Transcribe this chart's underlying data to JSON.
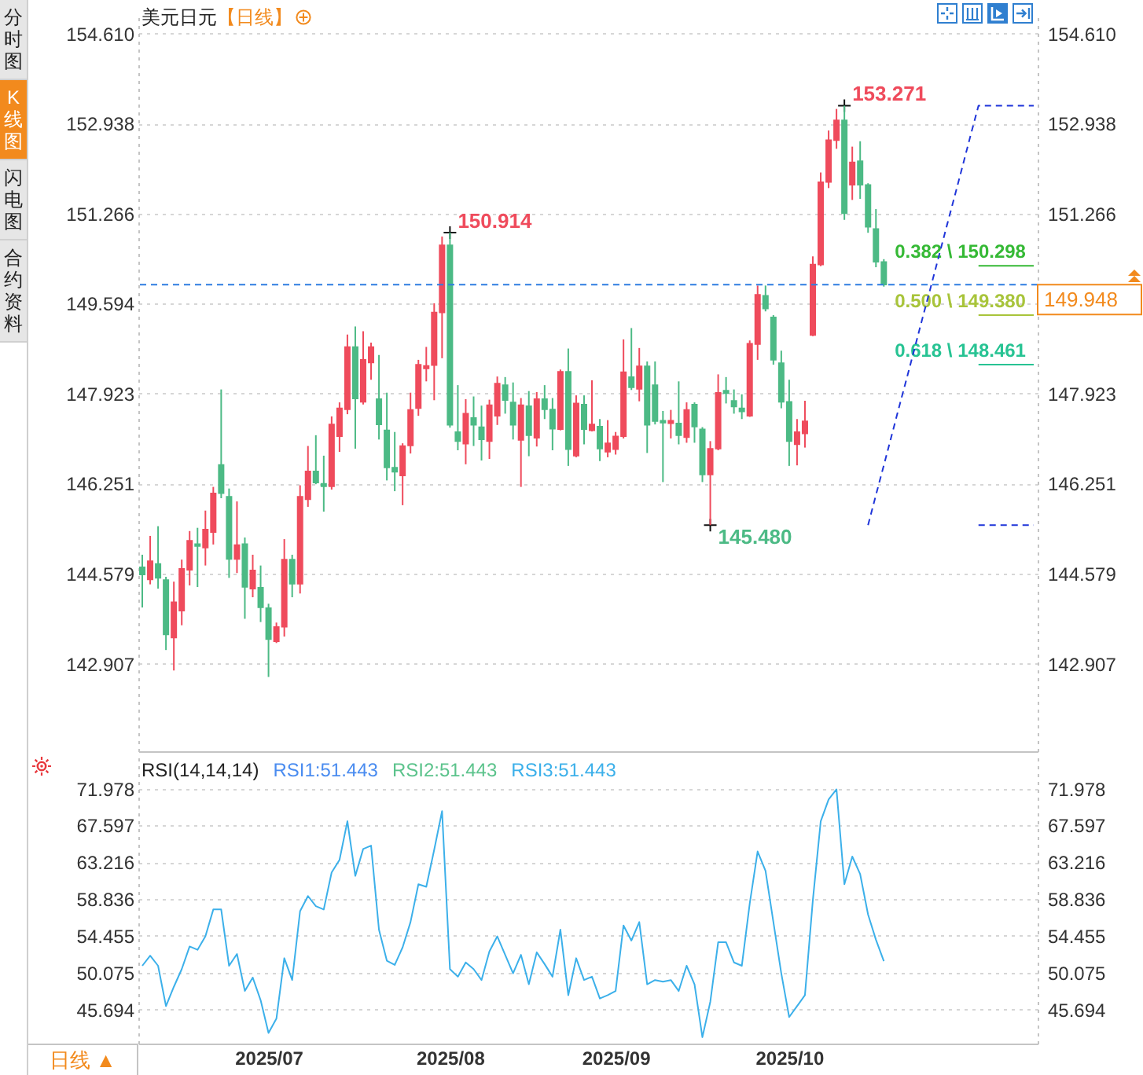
{
  "chart_data": [
    {
      "type": "candlestick",
      "title": "美元日元",
      "subtitle": "【日线】",
      "categories": [
        null,
        null,
        null,
        null,
        null,
        null,
        null,
        null,
        null,
        null,
        null,
        null,
        null,
        null,
        null,
        null,
        "2025/07",
        null,
        null,
        null,
        null,
        null,
        null,
        null,
        null,
        null,
        null,
        null,
        null,
        null,
        null,
        null,
        null,
        null,
        null,
        null,
        null,
        null,
        null,
        "2025/08",
        null,
        null,
        null,
        null,
        null,
        null,
        null,
        null,
        null,
        null,
        null,
        null,
        null,
        null,
        null,
        null,
        null,
        null,
        null,
        null,
        "2025/09",
        null,
        null,
        null,
        null,
        null,
        null,
        null,
        null,
        null,
        null,
        null,
        null,
        null,
        null,
        null,
        null,
        null,
        null,
        null,
        null,
        null,
        "2025/10",
        null,
        null,
        null,
        null,
        null,
        null,
        null,
        null,
        null,
        null,
        null,
        null,
        null,
        null,
        null,
        null,
        null,
        null,
        null,
        null,
        null,
        null,
        null,
        null,
        null,
        null,
        null,
        null,
        null,
        null,
        null
      ],
      "ohlc": [
        [
          144.7,
          144.93,
          143.95,
          144.56
        ],
        [
          144.47,
          145.28,
          144.38,
          144.81
        ],
        [
          144.76,
          145.46,
          144.3,
          144.5
        ],
        [
          144.46,
          144.52,
          143.16,
          143.45
        ],
        [
          143.39,
          144.43,
          142.78,
          144.05
        ],
        [
          143.89,
          144.84,
          143.62,
          144.67
        ],
        [
          144.65,
          145.37,
          144.36,
          145.19
        ],
        [
          145.13,
          145.43,
          144.33,
          145.09
        ],
        [
          145.06,
          145.75,
          144.73,
          145.4
        ],
        [
          145.35,
          146.19,
          145.12,
          146.07
        ],
        [
          146.6,
          148.0,
          145.98,
          146.07
        ],
        [
          146.01,
          146.16,
          144.5,
          144.85
        ],
        [
          144.85,
          145.92,
          144.59,
          145.11
        ],
        [
          145.13,
          145.25,
          143.74,
          144.33
        ],
        [
          144.3,
          144.93,
          144.14,
          144.64
        ],
        [
          144.32,
          144.73,
          143.68,
          143.95
        ],
        [
          143.94,
          144.02,
          142.66,
          143.36
        ],
        [
          143.32,
          143.67,
          143.29,
          143.59
        ],
        [
          143.59,
          145.22,
          143.41,
          144.84
        ],
        [
          144.84,
          144.93,
          144.14,
          144.39
        ],
        [
          144.39,
          146.22,
          144.21,
          146.01
        ],
        [
          145.96,
          146.95,
          145.82,
          146.48
        ],
        [
          146.48,
          147.15,
          146.24,
          146.27
        ],
        [
          146.25,
          146.77,
          145.73,
          146.2
        ],
        [
          146.2,
          147.5,
          146.14,
          147.35
        ],
        [
          147.13,
          147.76,
          146.84,
          147.65
        ],
        [
          147.63,
          149.02,
          147.54,
          148.79
        ],
        [
          148.79,
          149.17,
          146.9,
          147.83
        ],
        [
          147.77,
          149.08,
          147.72,
          148.55
        ],
        [
          148.5,
          148.87,
          148.18,
          148.79
        ],
        [
          147.82,
          148.64,
          147.07,
          147.35
        ],
        [
          147.24,
          147.94,
          146.31,
          146.55
        ],
        [
          146.55,
          147.21,
          146.11,
          146.47
        ],
        [
          146.4,
          147.0,
          145.85,
          146.95
        ],
        [
          146.96,
          147.94,
          146.81,
          147.62
        ],
        [
          147.65,
          148.55,
          147.51,
          148.46
        ],
        [
          148.39,
          148.79,
          148.15,
          148.44
        ],
        [
          148.45,
          149.6,
          147.8,
          149.43
        ],
        [
          149.43,
          150.84,
          148.58,
          150.68
        ],
        [
          150.68,
          150.914,
          147.29,
          147.34
        ],
        [
          147.21,
          148.08,
          146.87,
          147.04
        ],
        [
          146.99,
          147.82,
          146.61,
          147.55
        ],
        [
          147.47,
          147.87,
          146.95,
          147.34
        ],
        [
          147.3,
          147.7,
          146.68,
          147.07
        ],
        [
          147.04,
          147.81,
          146.71,
          147.71
        ],
        [
          147.51,
          148.24,
          147.34,
          148.11
        ],
        [
          148.08,
          148.23,
          147.55,
          147.8
        ],
        [
          147.76,
          148.13,
          147.07,
          147.34
        ],
        [
          147.06,
          147.84,
          146.19,
          147.71
        ],
        [
          147.69,
          147.97,
          146.76,
          147.15
        ],
        [
          147.1,
          147.95,
          146.94,
          147.82
        ],
        [
          147.82,
          148.08,
          147.45,
          147.63
        ],
        [
          147.63,
          147.84,
          146.87,
          147.27
        ],
        [
          147.26,
          148.37,
          147.24,
          148.33
        ],
        [
          148.33,
          148.76,
          146.58,
          146.89
        ],
        [
          146.77,
          147.89,
          146.74,
          147.74
        ],
        [
          147.72,
          147.89,
          146.98,
          147.26
        ],
        [
          147.24,
          148.17,
          147.22,
          147.35
        ],
        [
          147.31,
          147.45,
          146.67,
          146.9
        ],
        [
          146.84,
          147.43,
          146.74,
          147.0
        ],
        [
          146.89,
          147.21,
          146.79,
          147.13
        ],
        [
          147.13,
          148.93,
          147.09,
          148.32
        ],
        [
          148.23,
          149.14,
          147.99,
          148.04
        ],
        [
          148.01,
          148.77,
          147.78,
          148.43
        ],
        [
          148.43,
          148.52,
          146.82,
          147.34
        ],
        [
          148.08,
          148.52,
          147.35,
          147.41
        ],
        [
          147.42,
          147.6,
          146.28,
          147.38
        ],
        [
          147.37,
          147.62,
          147.09,
          147.42
        ],
        [
          147.37,
          148.15,
          146.98,
          147.15
        ],
        [
          147.11,
          147.76,
          147.01,
          147.62
        ],
        [
          147.72,
          147.76,
          147.01,
          147.31
        ],
        [
          147.26,
          147.3,
          146.28,
          146.42
        ],
        [
          146.42,
          147.04,
          145.48,
          146.9
        ],
        [
          146.9,
          148.28,
          146.87,
          147.94
        ],
        [
          147.98,
          148.23,
          147.74,
          147.93
        ],
        [
          147.79,
          148.0,
          147.55,
          147.68
        ],
        [
          147.65,
          147.91,
          147.45,
          147.59
        ],
        [
          147.51,
          148.91,
          147.49,
          148.85
        ],
        [
          148.84,
          149.93,
          148.55,
          149.76
        ],
        [
          149.74,
          149.93,
          149.45,
          149.5
        ],
        [
          149.34,
          149.38,
          148.46,
          148.55
        ],
        [
          148.49,
          148.72,
          147.65,
          147.77
        ],
        [
          147.77,
          148.18,
          146.58,
          147.04
        ],
        [
          146.98,
          147.45,
          146.59,
          147.21
        ],
        [
          147.18,
          147.79,
          146.92,
          147.41
        ],
        [
          149.01,
          150.47,
          148.99,
          150.32
        ],
        [
          150.32,
          152.03,
          150.29,
          151.85
        ],
        [
          151.85,
          152.81,
          151.74,
          152.63
        ],
        [
          152.63,
          153.21,
          152.47,
          153.0
        ],
        [
          153.0,
          153.271,
          151.15,
          151.27
        ],
        [
          151.8,
          152.51,
          151.52,
          152.22
        ],
        [
          152.24,
          152.61,
          151.54,
          151.8
        ],
        [
          151.8,
          151.83,
          150.91,
          151.02
        ],
        [
          150.98,
          151.35,
          150.27,
          150.37
        ],
        [
          150.37,
          150.42,
          149.91,
          149.948
        ],
        null,
        null,
        null,
        null,
        null,
        null,
        null,
        null,
        null,
        null,
        null,
        null,
        null,
        null,
        null,
        null,
        null,
        null,
        null
      ],
      "value_labels": [
        null,
        null,
        null,
        null,
        null,
        null,
        null,
        null,
        null,
        null,
        null,
        null,
        null,
        null,
        null,
        null,
        null,
        null,
        null,
        null,
        null,
        null,
        null,
        null,
        null,
        null,
        null,
        null,
        null,
        null,
        null,
        null,
        null,
        null,
        null,
        null,
        null,
        null,
        null,
        "150.914",
        null,
        null,
        null,
        null,
        null,
        null,
        null,
        null,
        null,
        null,
        null,
        null,
        null,
        null,
        null,
        null,
        null,
        null,
        null,
        null,
        null,
        null,
        null,
        null,
        null,
        null,
        null,
        null,
        null,
        null,
        null,
        null,
        "145.480",
        null,
        null,
        null,
        null,
        null,
        null,
        null,
        null,
        null,
        null,
        null,
        null,
        null,
        null,
        null,
        null,
        "153.271",
        null,
        null,
        null,
        null,
        null,
        null,
        null,
        null,
        null,
        null,
        null,
        null,
        null,
        null,
        null,
        null,
        null,
        null,
        null,
        null,
        null,
        null,
        null,
        null
      ],
      "colors": [
        "#4cba85",
        "#ef4b5c",
        "#4cba85",
        "#4cba85",
        "#ef4b5c",
        "#ef4b5c",
        "#ef4b5c",
        "#4cba85",
        "#ef4b5c",
        "#ef4b5c",
        "#4cba85",
        "#4cba85",
        "#ef4b5c",
        "#4cba85",
        "#ef4b5c",
        "#4cba85",
        "#4cba85",
        "#ef4b5c",
        "#ef4b5c",
        "#4cba85",
        "#ef4b5c",
        "#ef4b5c",
        "#4cba85",
        "#4cba85",
        "#ef4b5c",
        "#ef4b5c",
        "#ef4b5c",
        "#4cba85",
        "#ef4b5c",
        "#ef4b5c",
        "#4cba85",
        "#4cba85",
        "#4cba85",
        "#ef4b5c",
        "#ef4b5c",
        "#ef4b5c",
        "#ef4b5c",
        "#ef4b5c",
        "#ef4b5c",
        "#4cba85",
        "#4cba85",
        "#ef4b5c",
        "#4cba85",
        "#4cba85",
        "#ef4b5c",
        "#ef4b5c",
        "#4cba85",
        "#4cba85",
        "#ef4b5c",
        "#4cba85",
        "#ef4b5c",
        "#4cba85",
        "#4cba85",
        "#ef4b5c",
        "#4cba85",
        "#ef4b5c",
        "#4cba85",
        "#ef4b5c",
        "#4cba85",
        "#ef4b5c",
        "#ef4b5c",
        "#ef4b5c",
        "#4cba85",
        "#ef4b5c",
        "#4cba85",
        "#4cba85",
        "#4cba85",
        "#ef4b5c",
        "#4cba85",
        "#ef4b5c",
        "#4cba85",
        "#4cba85",
        "#ef4b5c",
        "#ef4b5c",
        "#4cba85",
        "#4cba85",
        "#4cba85",
        "#ef4b5c",
        "#ef4b5c",
        "#4cba85",
        "#4cba85",
        "#4cba85",
        "#4cba85",
        "#ef4b5c",
        "#ef4b5c",
        "#ef4b5c",
        "#ef4b5c",
        "#ef4b5c",
        "#ef4b5c",
        "#4cba85",
        "#ef4b5c",
        "#4cba85",
        "#4cba85",
        "#4cba85",
        "#4cba85",
        null,
        null,
        null,
        null,
        null,
        null,
        null,
        null,
        null,
        null,
        null,
        null,
        null,
        null,
        null,
        null,
        null,
        null,
        null
      ],
      "series": [
        {
          "type": "line",
          "name": "0.382 \\ 150.298",
          "color": "#35b935",
          "values": [
            null,
            null,
            null,
            null,
            null,
            null,
            null,
            null,
            null,
            null,
            null,
            null,
            null,
            null,
            null,
            null,
            null,
            null,
            null,
            null,
            null,
            null,
            null,
            null,
            null,
            null,
            null,
            null,
            null,
            null,
            null,
            null,
            null,
            null,
            null,
            null,
            null,
            null,
            null,
            null,
            null,
            null,
            null,
            null,
            null,
            null,
            null,
            null,
            null,
            null,
            null,
            null,
            null,
            null,
            null,
            null,
            null,
            null,
            null,
            null,
            null,
            null,
            null,
            null,
            null,
            null,
            null,
            null,
            null,
            null,
            null,
            null,
            null,
            null,
            null,
            null,
            null,
            null,
            null,
            null,
            null,
            null,
            null,
            null,
            null,
            null,
            null,
            null,
            null,
            null,
            null,
            null,
            null,
            null,
            null,
            null,
            null,
            null,
            null,
            null,
            null,
            null,
            null,
            null,
            null,
            null,
            150.298,
            150.298,
            150.298,
            150.298,
            150.298,
            150.298,
            150.298,
            150.298
          ]
        },
        {
          "type": "line",
          "name": "0.500 \\ 149.380",
          "color": "#a8c43a",
          "values": [
            null,
            null,
            null,
            null,
            null,
            null,
            null,
            null,
            null,
            null,
            null,
            null,
            null,
            null,
            null,
            null,
            null,
            null,
            null,
            null,
            null,
            null,
            null,
            null,
            null,
            null,
            null,
            null,
            null,
            null,
            null,
            null,
            null,
            null,
            null,
            null,
            null,
            null,
            null,
            null,
            null,
            null,
            null,
            null,
            null,
            null,
            null,
            null,
            null,
            null,
            null,
            null,
            null,
            null,
            null,
            null,
            null,
            null,
            null,
            null,
            null,
            null,
            null,
            null,
            null,
            null,
            null,
            null,
            null,
            null,
            null,
            null,
            null,
            null,
            null,
            null,
            null,
            null,
            null,
            null,
            null,
            null,
            null,
            null,
            null,
            null,
            null,
            null,
            null,
            null,
            null,
            null,
            null,
            null,
            null,
            null,
            null,
            null,
            null,
            null,
            null,
            null,
            null,
            null,
            null,
            null,
            149.38,
            149.38,
            149.38,
            149.38,
            149.38,
            149.38,
            149.38,
            149.38
          ]
        },
        {
          "type": "line",
          "name": "0.618 \\ 148.461",
          "color": "#27c393",
          "values": [
            null,
            null,
            null,
            null,
            null,
            null,
            null,
            null,
            null,
            null,
            null,
            null,
            null,
            null,
            null,
            null,
            null,
            null,
            null,
            null,
            null,
            null,
            null,
            null,
            null,
            null,
            null,
            null,
            null,
            null,
            null,
            null,
            null,
            null,
            null,
            null,
            null,
            null,
            null,
            null,
            null,
            null,
            null,
            null,
            null,
            null,
            null,
            null,
            null,
            null,
            null,
            null,
            null,
            null,
            null,
            null,
            null,
            null,
            null,
            null,
            null,
            null,
            null,
            null,
            null,
            null,
            null,
            null,
            null,
            null,
            null,
            null,
            null,
            null,
            null,
            null,
            null,
            null,
            null,
            null,
            null,
            null,
            null,
            null,
            null,
            null,
            null,
            null,
            null,
            null,
            null,
            null,
            null,
            null,
            null,
            null,
            null,
            null,
            null,
            null,
            null,
            null,
            null,
            null,
            null,
            null,
            148.461,
            148.461,
            148.461,
            148.461,
            148.461,
            148.461,
            148.461,
            148.461
          ]
        },
        {
          "type": "line",
          "color": "#1f35d9",
          "line_style": "dashed",
          "values": [
            null,
            null,
            null,
            null,
            null,
            null,
            null,
            null,
            null,
            null,
            null,
            null,
            null,
            null,
            null,
            null,
            null,
            null,
            null,
            null,
            null,
            null,
            null,
            null,
            null,
            null,
            null,
            null,
            null,
            null,
            null,
            null,
            null,
            null,
            null,
            null,
            null,
            null,
            null,
            null,
            null,
            null,
            null,
            null,
            null,
            null,
            null,
            null,
            null,
            null,
            null,
            null,
            null,
            null,
            null,
            null,
            null,
            null,
            null,
            null,
            null,
            null,
            null,
            null,
            null,
            null,
            null,
            null,
            null,
            null,
            null,
            null,
            null,
            null,
            null,
            null,
            null,
            null,
            null,
            null,
            null,
            null,
            null,
            null,
            null,
            null,
            null,
            null,
            null,
            null,
            null,
            null,
            145.48,
            146.04,
            146.59,
            147.15,
            147.71,
            148.26,
            148.82,
            149.38,
            149.93,
            150.49,
            151.05,
            151.6,
            152.16,
            152.72,
            153.271,
            153.271,
            153.271,
            153.271,
            153.271,
            153.271,
            153.271,
            153.271
          ]
        },
        {
          "type": "line",
          "color": "#1f35d9",
          "line_style": "dashed",
          "values": [
            null,
            null,
            null,
            null,
            null,
            null,
            null,
            null,
            null,
            null,
            null,
            null,
            null,
            null,
            null,
            null,
            null,
            null,
            null,
            null,
            null,
            null,
            null,
            null,
            null,
            null,
            null,
            null,
            null,
            null,
            null,
            null,
            null,
            null,
            null,
            null,
            null,
            null,
            null,
            null,
            null,
            null,
            null,
            null,
            null,
            null,
            null,
            null,
            null,
            null,
            null,
            null,
            null,
            null,
            null,
            null,
            null,
            null,
            null,
            null,
            null,
            null,
            null,
            null,
            null,
            null,
            null,
            null,
            null,
            null,
            null,
            null,
            null,
            null,
            null,
            null,
            null,
            null,
            null,
            null,
            null,
            null,
            null,
            null,
            null,
            null,
            null,
            null,
            null,
            null,
            null,
            null,
            null,
            null,
            null,
            null,
            null,
            null,
            null,
            null,
            null,
            null,
            null,
            null,
            null,
            null,
            145.48,
            145.48,
            145.48,
            145.48,
            145.48,
            145.48,
            145.48,
            145.48
          ]
        }
      ],
      "ylim": [
        141.28,
        155.0
      ],
      "yticks": [
        {
          "value": 154.61,
          "label": "154.610"
        },
        152.938,
        151.266,
        149.594,
        147.923,
        146.251,
        144.579,
        142.907
      ],
      "y2lim": [
        141.28,
        155.0
      ],
      "y2ticks": [
        {
          "value": 154.61,
          "label": "154.610"
        },
        152.938,
        151.266,
        147.923,
        146.251,
        144.579,
        142.907
      ],
      "ref_lines": [
        {
          "axis": "y2",
          "value": 149.948,
          "label": "149.948",
          "color": "#2f7de1",
          "line_style": "dashed"
        }
      ],
      "grid": "y",
      "tick_labels": "y"
    },
    {
      "type": "line",
      "title": "RSI(14,14,14)",
      "categories": [
        null,
        null,
        null,
        null,
        null,
        null,
        null,
        null,
        null,
        null,
        null,
        null,
        null,
        null,
        null,
        null,
        "2025/07",
        null,
        null,
        null,
        null,
        null,
        null,
        null,
        null,
        null,
        null,
        null,
        null,
        null,
        null,
        null,
        null,
        null,
        null,
        null,
        null,
        null,
        null,
        "2025/08",
        null,
        null,
        null,
        null,
        null,
        null,
        null,
        null,
        null,
        null,
        null,
        null,
        null,
        null,
        null,
        null,
        null,
        null,
        null,
        null,
        "2025/09",
        null,
        null,
        null,
        null,
        null,
        null,
        null,
        null,
        null,
        null,
        null,
        null,
        null,
        null,
        null,
        null,
        null,
        null,
        null,
        null,
        null,
        "2025/10",
        null,
        null,
        null,
        null,
        null,
        null,
        null,
        null,
        null,
        null,
        null,
        null,
        null,
        null,
        null,
        null,
        null,
        null,
        null,
        null,
        null,
        null,
        null,
        null,
        null,
        null,
        null,
        null,
        null,
        null,
        null
      ],
      "series": [
        {
          "name": "RSI1:51.443",
          "color": "#4a8cf0",
          "values": [
            null,
            null,
            null,
            null,
            null,
            null,
            null,
            null,
            null,
            null,
            null,
            null,
            null,
            null,
            null,
            null,
            null,
            null,
            null,
            null,
            null,
            null,
            null,
            null,
            null,
            null,
            null,
            null,
            null,
            null,
            null,
            null,
            null,
            null,
            null,
            null,
            null,
            null,
            null,
            null,
            null,
            null,
            null,
            null,
            null,
            null,
            null,
            null,
            null,
            null,
            null,
            null,
            null,
            null,
            null,
            null,
            null,
            null,
            null,
            null,
            null,
            null,
            null,
            null,
            null,
            null,
            null,
            null,
            null,
            null,
            null,
            null,
            null,
            null,
            null,
            null,
            null,
            null,
            null,
            null,
            null,
            null,
            null,
            null,
            null,
            null,
            null,
            null,
            null,
            null,
            null,
            null,
            null,
            null,
            null,
            null,
            null,
            null,
            null,
            null,
            null,
            null,
            null,
            null,
            null,
            null,
            null,
            null,
            null,
            null,
            null,
            null,
            null,
            null
          ]
        },
        {
          "name": "RSI2:51.443",
          "color": "#5cc38c",
          "values": [
            null,
            null,
            null,
            null,
            null,
            null,
            null,
            null,
            null,
            null,
            null,
            null,
            null,
            null,
            null,
            null,
            null,
            null,
            null,
            null,
            null,
            null,
            null,
            null,
            null,
            null,
            null,
            null,
            null,
            null,
            null,
            null,
            null,
            null,
            null,
            null,
            null,
            null,
            null,
            null,
            null,
            null,
            null,
            null,
            null,
            null,
            null,
            null,
            null,
            null,
            null,
            null,
            null,
            null,
            null,
            null,
            null,
            null,
            null,
            null,
            null,
            null,
            null,
            null,
            null,
            null,
            null,
            null,
            null,
            null,
            null,
            null,
            null,
            null,
            null,
            null,
            null,
            null,
            null,
            null,
            null,
            null,
            null,
            null,
            null,
            null,
            null,
            null,
            null,
            null,
            null,
            null,
            null,
            null,
            null,
            null,
            null,
            null,
            null,
            null,
            null,
            null,
            null,
            null,
            null,
            null,
            null,
            null,
            null,
            null,
            null,
            null,
            null,
            null
          ]
        },
        {
          "name": "RSI3:51.443",
          "color": "#3cb0ea",
          "axis": "y2",
          "values": [
            50.9,
            52.1,
            50.9,
            46.1,
            48.4,
            50.5,
            53.2,
            52.8,
            54.4,
            57.6,
            57.6,
            50.9,
            52.3,
            47.9,
            49.5,
            46.8,
            42.9,
            44.6,
            51.8,
            49.2,
            57.4,
            59.2,
            58.0,
            57.6,
            62.0,
            63.5,
            68.1,
            61.6,
            64.8,
            65.2,
            55.2,
            51.5,
            51.0,
            53.1,
            56.1,
            60.6,
            60.3,
            64.7,
            69.3,
            50.5,
            49.6,
            51.3,
            50.5,
            49.2,
            52.6,
            54.4,
            52.2,
            50.0,
            52.2,
            48.7,
            52.5,
            51.1,
            49.6,
            55.2,
            47.4,
            51.8,
            49.2,
            49.6,
            47.0,
            47.4,
            47.9,
            55.7,
            53.9,
            56.1,
            48.7,
            49.2,
            49.0,
            49.2,
            47.9,
            50.9,
            48.7,
            42.4,
            46.6,
            53.7,
            53.7,
            51.3,
            50.9,
            58.3,
            64.5,
            62.2,
            56.1,
            50.0,
            44.8,
            46.1,
            47.4,
            58.7,
            68.1,
            70.7,
            71.9,
            60.6,
            63.9,
            61.8,
            57.0,
            54.0,
            51.443,
            null,
            null,
            null,
            null,
            null,
            null,
            null,
            null,
            null,
            null,
            null,
            null,
            null,
            null,
            null,
            null,
            null,
            null,
            null
          ]
        }
      ],
      "ylim": [
        41.64,
        76.06
      ],
      "yticks": [
        45.694,
        50.075,
        54.455,
        58.836,
        63.216,
        67.597,
        71.978
      ],
      "y2lim": [
        41.64,
        76.06
      ],
      "y2ticks": [
        45.694,
        50.075,
        54.455,
        58.836,
        63.216,
        67.597,
        71.978
      ],
      "grid": "y",
      "legend": "top left",
      "annotations": [
        "日线 ▲"
      ]
    },
    {
      "type": "other",
      "annotations": [
        "分时图",
        "K线图",
        "闪电图",
        "合约资料"
      ]
    }
  ]
}
